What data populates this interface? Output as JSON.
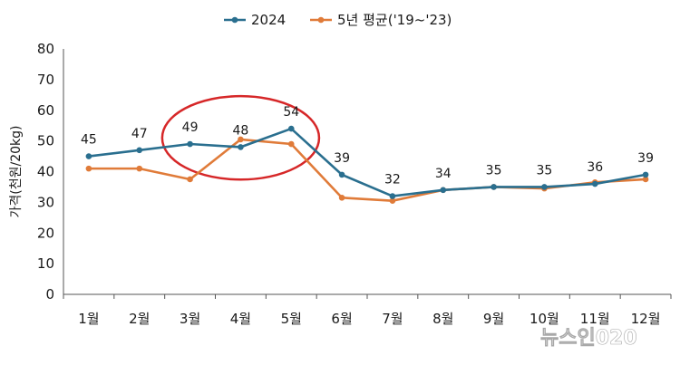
{
  "chart_data": {
    "type": "line",
    "categories": [
      "1월",
      "2월",
      "3월",
      "4월",
      "5월",
      "6월",
      "7월",
      "8월",
      "9월",
      "10월",
      "11월",
      "12월"
    ],
    "series": [
      {
        "name": "2024",
        "color": "#2a6f8f",
        "values": [
          45,
          47,
          49,
          48,
          54,
          39,
          32,
          34,
          35,
          35,
          36,
          39
        ],
        "labels": [
          "45",
          "47",
          "49",
          "48",
          "54",
          "39",
          "32",
          "34",
          "35",
          "35",
          "36",
          "39"
        ]
      },
      {
        "name": "5년 평균('19~'23)",
        "color": "#e07b39",
        "values": [
          41,
          41,
          37.5,
          50.5,
          49,
          31.5,
          30.5,
          34,
          35,
          34.5,
          36.5,
          37.5
        ]
      }
    ],
    "ylabel": "가격(천원/20kg)",
    "xlabel": "",
    "ylim": [
      0,
      80
    ],
    "yticks": [
      0,
      10,
      20,
      30,
      40,
      50,
      60,
      70,
      80
    ],
    "grid": false,
    "legend": "top-center",
    "annotation": {
      "type": "ellipse",
      "color": "#d62728",
      "around_categories": [
        "3월",
        "4월",
        "5월"
      ]
    },
    "watermark": "뉴스인020"
  }
}
